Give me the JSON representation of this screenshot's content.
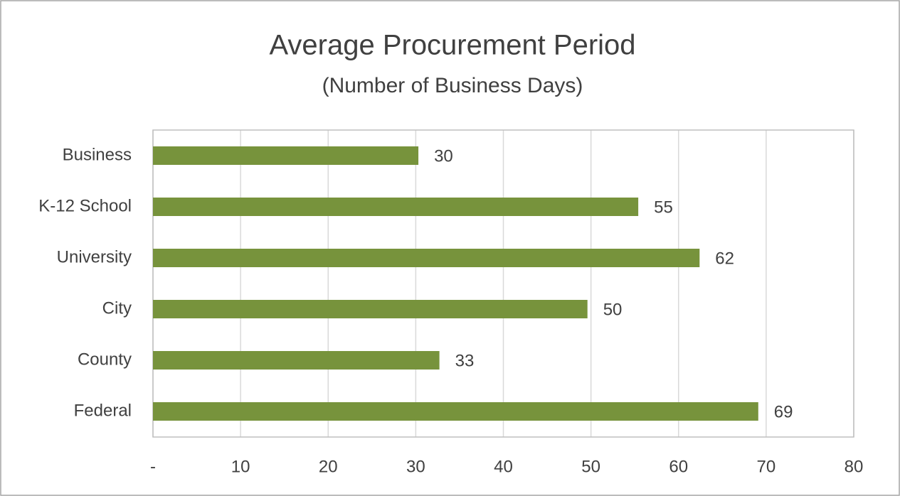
{
  "chart_data": {
    "type": "bar",
    "orientation": "horizontal",
    "title": "Average Procurement Period",
    "subtitle": "(Number of Business Days)",
    "categories": [
      "Business",
      "K-12 School",
      "University",
      "City",
      "County",
      "Federal"
    ],
    "values": [
      30.3,
      55.4,
      62.4,
      49.6,
      32.7,
      69.1
    ],
    "value_labels": [
      "30",
      "55",
      "62",
      "50",
      "33",
      "69"
    ],
    "color": "#77933c",
    "xlim": [
      0,
      80
    ],
    "xticks": [
      {
        "value": 0,
        "label": "-"
      },
      10,
      20,
      30,
      40,
      50,
      60,
      70,
      80
    ],
    "grid": true
  }
}
